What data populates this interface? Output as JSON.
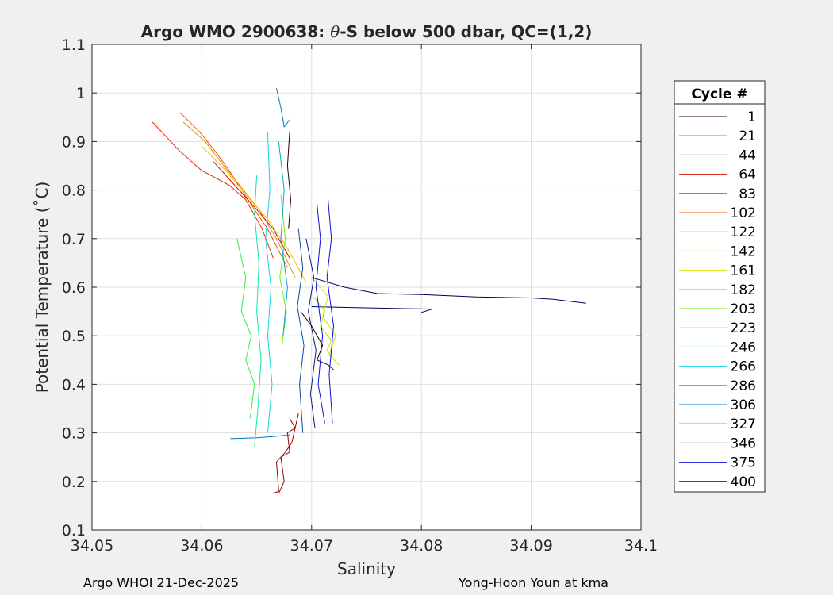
{
  "chart_data": {
    "type": "line",
    "title": "Argo WMO 2900638: θ-S below 500 dbar,  QC=(1,2)",
    "title_prefix": "Argo WMO 2900638: ",
    "title_theta": "θ",
    "title_suffix": "-S below 500 dbar,  QC=(1,2)",
    "xlabel": "Salinity",
    "ylabel": "Potential Temperature (˚C)",
    "xlim": [
      34.05,
      34.1
    ],
    "ylim": [
      0.1,
      1.1
    ],
    "x_ticks": [
      34.05,
      34.06,
      34.07,
      34.08,
      34.09,
      34.1
    ],
    "x_tick_labels": [
      "34.05",
      "34.06",
      "34.07",
      "34.08",
      "34.09",
      "34.1"
    ],
    "y_ticks": [
      0.1,
      0.2,
      0.3,
      0.4,
      0.5,
      0.6,
      0.7,
      0.8,
      0.9,
      1.0,
      1.1
    ],
    "y_tick_labels": [
      "0.1",
      "0.2",
      "0.3",
      "0.4",
      "0.5",
      "0.6",
      "0.7",
      "0.8",
      "0.9",
      "1",
      "1.1"
    ],
    "grid": true,
    "legend": {
      "title": "Cycle #",
      "placement": "outside-right",
      "entries": [
        {
          "label": "1",
          "color": "#2a0000"
        },
        {
          "label": "21",
          "color": "#600000"
        },
        {
          "label": "44",
          "color": "#9c0000"
        },
        {
          "label": "64",
          "color": "#d81000"
        },
        {
          "label": "83",
          "color": "#e63000"
        },
        {
          "label": "102",
          "color": "#f05a00"
        },
        {
          "label": "122",
          "color": "#f28a00"
        },
        {
          "label": "142",
          "color": "#e8c400"
        },
        {
          "label": "161",
          "color": "#d8e000"
        },
        {
          "label": "182",
          "color": "#b4ec00"
        },
        {
          "label": "203",
          "color": "#6cf000"
        },
        {
          "label": "223",
          "color": "#30ee40"
        },
        {
          "label": "246",
          "color": "#10e8a0"
        },
        {
          "label": "266",
          "color": "#10d8e8"
        },
        {
          "label": "286",
          "color": "#00a8d8"
        },
        {
          "label": "306",
          "color": "#0078c8"
        },
        {
          "label": "327",
          "color": "#0a4aa0"
        },
        {
          "label": "346",
          "color": "#002080"
        },
        {
          "label": "375",
          "color": "#0a14d8"
        },
        {
          "label": "400",
          "color": "#000060"
        }
      ]
    },
    "series": [
      {
        "color": "#e63000",
        "x": [
          34.0555,
          34.058,
          34.06,
          34.0625,
          34.064,
          34.0655,
          34.0665
        ],
        "y": [
          0.94,
          0.88,
          0.84,
          0.81,
          0.78,
          0.72,
          0.66
        ]
      },
      {
        "color": "#f05a00",
        "x": [
          34.058,
          34.0598,
          34.0612,
          34.0625,
          34.0642,
          34.066,
          34.0678
        ],
        "y": [
          0.96,
          0.92,
          0.88,
          0.84,
          0.78,
          0.72,
          0.64
        ]
      },
      {
        "color": "#f28a00",
        "x": [
          34.0583,
          34.0603,
          34.062,
          34.0638,
          34.0652,
          34.0668,
          34.0685
        ],
        "y": [
          0.94,
          0.9,
          0.85,
          0.8,
          0.76,
          0.7,
          0.62
        ]
      },
      {
        "color": "#e8c400",
        "x": [
          34.06,
          34.0622,
          34.064,
          34.066,
          34.0678,
          34.0695
        ],
        "y": [
          0.89,
          0.84,
          0.79,
          0.74,
          0.68,
          0.61
        ]
      },
      {
        "color": "#d81000",
        "x": [
          34.061,
          34.063,
          34.065,
          34.0665,
          34.068
        ],
        "y": [
          0.86,
          0.81,
          0.76,
          0.72,
          0.66
        ]
      },
      {
        "color": "#9c0000",
        "x": [
          34.067,
          34.0675,
          34.0672,
          34.068,
          34.0678,
          34.0685,
          34.068
        ],
        "y": [
          0.175,
          0.2,
          0.25,
          0.26,
          0.3,
          0.31,
          0.33
        ]
      },
      {
        "color": "#9c0000",
        "x": [
          34.0665,
          34.067,
          34.0668,
          34.0676,
          34.0682,
          34.0688
        ],
        "y": [
          0.175,
          0.18,
          0.24,
          0.26,
          0.28,
          0.34
        ]
      },
      {
        "color": "#2a0000",
        "x": [
          34.068,
          34.0678,
          34.0681,
          34.0679
        ],
        "y": [
          0.92,
          0.85,
          0.78,
          0.72
        ]
      },
      {
        "color": "#2a0000",
        "x": [
          34.069,
          34.07,
          34.071,
          34.0705,
          34.0715,
          34.072
        ],
        "y": [
          0.55,
          0.52,
          0.48,
          0.45,
          0.44,
          0.43
        ]
      },
      {
        "color": "#000060",
        "x": [
          34.07,
          34.073,
          34.076,
          34.08,
          34.085,
          34.09,
          34.092,
          34.095
        ],
        "y": [
          0.62,
          0.6,
          0.587,
          0.585,
          0.58,
          0.578,
          0.575,
          0.567
        ]
      },
      {
        "color": "#000060",
        "x": [
          34.07,
          34.074,
          34.078,
          34.081,
          34.08
        ],
        "y": [
          0.56,
          0.558,
          0.556,
          0.555,
          0.548
        ]
      },
      {
        "color": "#0078c8",
        "x": [
          34.0668,
          34.0672,
          34.0675,
          34.068
        ],
        "y": [
          1.01,
          0.97,
          0.93,
          0.945
        ]
      },
      {
        "color": "#0078c8",
        "x": [
          34.0626,
          34.065,
          34.0668,
          34.068
        ],
        "y": [
          0.288,
          0.29,
          0.293,
          0.296
        ]
      },
      {
        "color": "#10d8e8",
        "x": [
          34.066,
          34.0662,
          34.0658,
          34.0663,
          34.066,
          34.0664,
          34.066
        ],
        "y": [
          0.92,
          0.8,
          0.7,
          0.6,
          0.5,
          0.4,
          0.3
        ]
      },
      {
        "color": "#10e8a0",
        "x": [
          34.065,
          34.0648,
          34.0652,
          34.065,
          34.0654,
          34.0651,
          34.0648
        ],
        "y": [
          0.83,
          0.75,
          0.65,
          0.55,
          0.45,
          0.35,
          0.27
        ]
      },
      {
        "color": "#30ee40",
        "x": [
          34.0632,
          34.064,
          34.0636,
          34.0645,
          34.064,
          34.0648,
          34.0644
        ],
        "y": [
          0.7,
          0.62,
          0.55,
          0.5,
          0.45,
          0.4,
          0.33
        ]
      },
      {
        "color": "#6cf000",
        "x": [
          34.0672,
          34.0676,
          34.0671,
          34.0677,
          34.0673
        ],
        "y": [
          0.79,
          0.7,
          0.62,
          0.55,
          0.48
        ]
      },
      {
        "color": "#b4ec00",
        "x": [
          34.0702,
          34.0712,
          34.0708,
          34.0718,
          34.0714,
          34.072
        ],
        "y": [
          0.58,
          0.55,
          0.52,
          0.49,
          0.47,
          0.45
        ]
      },
      {
        "color": "#d8e000",
        "x": [
          34.07,
          34.0715,
          34.071,
          34.0722,
          34.0716,
          34.0725
        ],
        "y": [
          0.62,
          0.58,
          0.54,
          0.5,
          0.46,
          0.44
        ]
      },
      {
        "color": "#00a8d8",
        "x": [
          34.067,
          34.0675,
          34.0672,
          34.0678,
          34.0674
        ],
        "y": [
          0.9,
          0.8,
          0.7,
          0.6,
          0.5
        ]
      },
      {
        "color": "#0a14d8",
        "x": [
          34.0705,
          34.0708,
          34.0704,
          34.071,
          34.0706,
          34.0712
        ],
        "y": [
          0.77,
          0.7,
          0.6,
          0.5,
          0.4,
          0.32
        ]
      },
      {
        "color": "#0a14d8",
        "x": [
          34.0715,
          34.0718,
          34.0714,
          34.072,
          34.0716,
          34.0719
        ],
        "y": [
          0.78,
          0.7,
          0.62,
          0.52,
          0.42,
          0.32
        ]
      },
      {
        "color": "#0a4aa0",
        "x": [
          34.0688,
          34.0692,
          34.0687,
          34.0693,
          34.0689,
          34.0692
        ],
        "y": [
          0.72,
          0.64,
          0.56,
          0.48,
          0.4,
          0.3
        ]
      },
      {
        "color": "#002080",
        "x": [
          34.0695,
          34.0702,
          34.0697,
          34.0704,
          34.0699,
          34.0703
        ],
        "y": [
          0.7,
          0.62,
          0.55,
          0.47,
          0.38,
          0.31
        ]
      }
    ]
  },
  "footer": {
    "left": "Argo WHOI 21-Dec-2025",
    "right": "Yong-Hoon Youn at kma"
  }
}
